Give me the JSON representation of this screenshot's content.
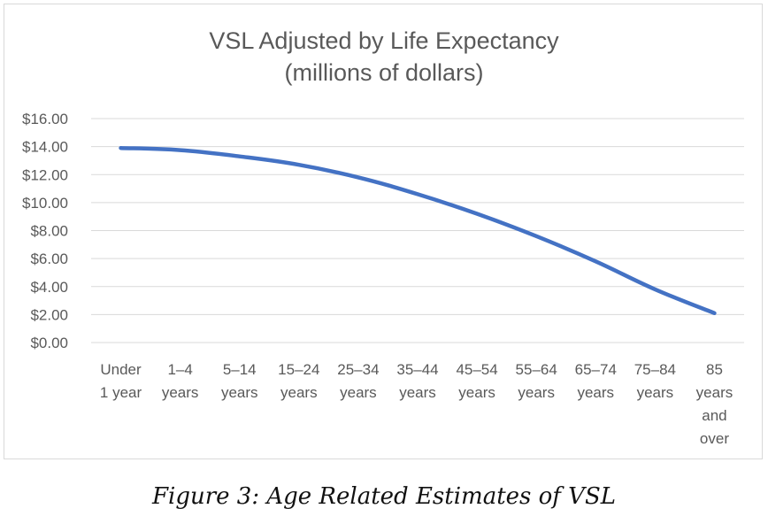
{
  "caption": "Figure 3: Age Related Estimates of VSL",
  "colors": {
    "line": "#4472c4",
    "grid": "#d9d9d9",
    "text": "#595959"
  },
  "chart_data": {
    "type": "line",
    "title": [
      "VSL Adjusted by Life Expectancy",
      "(millions of dollars)"
    ],
    "xlabel": "",
    "ylabel": "",
    "ylim": [
      0,
      16
    ],
    "grid": true,
    "legend": "none",
    "y_ticks": [
      "$0.00",
      "$2.00",
      "$4.00",
      "$6.00",
      "$8.00",
      "$10.00",
      "$12.00",
      "$14.00",
      "$16.00"
    ],
    "categories": [
      [
        "Under",
        "1 year"
      ],
      [
        "1–4",
        "years"
      ],
      [
        "5–14",
        "years"
      ],
      [
        "15–24",
        "years"
      ],
      [
        "25–34",
        "years"
      ],
      [
        "35–44",
        "years"
      ],
      [
        "45–54",
        "years"
      ],
      [
        "55–64",
        "years"
      ],
      [
        "65–74",
        "years"
      ],
      [
        "75–84",
        "years"
      ],
      [
        "85",
        "years",
        "and",
        "over"
      ]
    ],
    "series": [
      {
        "values": [
          13.9,
          13.75,
          13.3,
          12.7,
          11.8,
          10.6,
          9.2,
          7.6,
          5.8,
          3.8,
          2.1
        ]
      }
    ]
  }
}
